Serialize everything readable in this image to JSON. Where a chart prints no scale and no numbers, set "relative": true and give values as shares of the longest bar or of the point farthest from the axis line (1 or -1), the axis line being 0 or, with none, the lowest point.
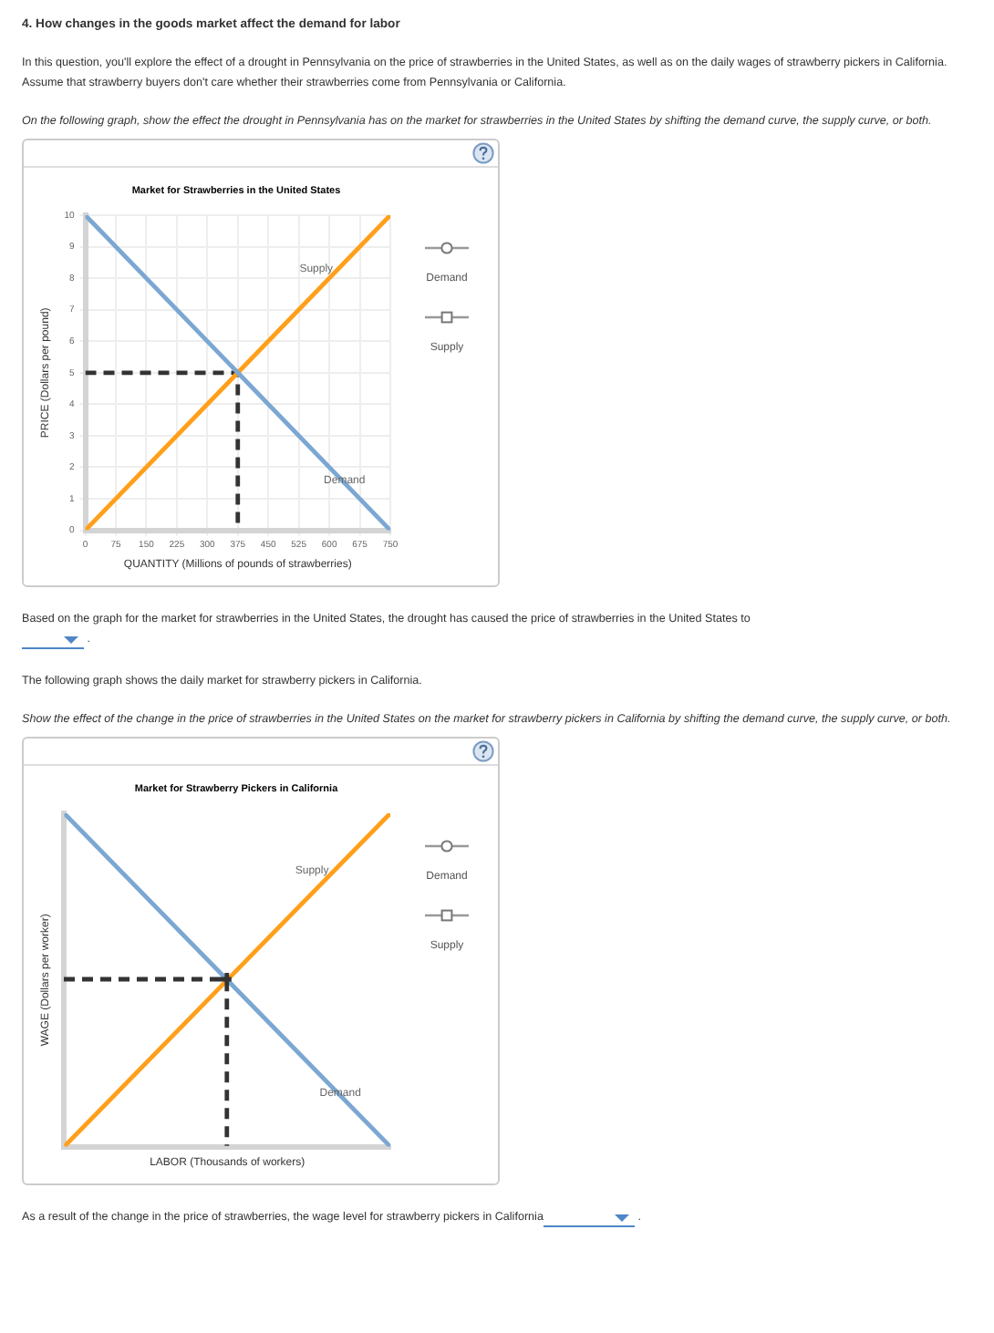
{
  "chart_data": [
    {
      "type": "line",
      "title": "Market for Strawberries in the United States",
      "xlabel": "QUANTITY (Millions of pounds of strawberries)",
      "ylabel": "PRICE (Dollars per pound)",
      "annotations": [
        "4. How changes in the goods market affect the demand for labor",
        "In this question, you'll explore the effect of a drought in Pennsylvania on the price of strawberries in the United States, as well as on the daily wages of strawberry pickers in California. Assume that strawberry buyers don't care whether their strawberries come from Pennsylvania or California.",
        "On the following graph, show the effect the drought in Pennsylvania has on the market for strawberries in the United States by shifting the demand curve, the supply curve, or both.",
        "Based on the graph for the market for strawberries in the United States, the drought has caused the price of strawberries in the United States to",
        "."
      ],
      "xlim": [
        0,
        750
      ],
      "xticks": [
        0,
        75,
        150,
        225,
        300,
        375,
        450,
        525,
        600,
        675,
        750
      ],
      "ylim": [
        0,
        10
      ],
      "yticks": [
        0,
        1,
        2,
        3,
        4,
        5,
        6,
        7,
        8,
        9,
        10
      ],
      "grid": true,
      "series": [
        {
          "name": "Demand",
          "color": "#7ba7d2",
          "x": [
            0,
            750
          ],
          "values": [
            10,
            0
          ]
        },
        {
          "name": "Supply",
          "color": "#ff9f1a",
          "x": [
            0,
            750
          ],
          "values": [
            0,
            10
          ]
        },
        {
          "color": "#333333",
          "line_style": "dashed",
          "x": [
            0,
            375,
            375
          ],
          "values": [
            5,
            5,
            0
          ]
        }
      ]
    },
    {
      "type": "line",
      "title": "Market for Strawberry Pickers in California",
      "xlabel": "LABOR (Thousands of workers)",
      "ylabel": "WAGE (Dollars per worker)",
      "annotations": [
        "The following graph shows the daily market for strawberry pickers in California.",
        "Show the effect of the change in the price of strawberries in the United States on the market for strawberry pickers in California by shifting the demand curve, the supply curve, or both.",
        "As a result of the change in the price of strawberries, the wage level for strawberry pickers in California",
        "."
      ],
      "relative": true,
      "categories": [
        null,
        null
      ],
      "series": [
        {
          "name": "Demand",
          "color": "#7ba7d2",
          "values": [
            1,
            0
          ]
        },
        {
          "name": "Supply",
          "color": "#ff9f1a",
          "values": [
            0,
            1
          ]
        }
      ]
    }
  ]
}
